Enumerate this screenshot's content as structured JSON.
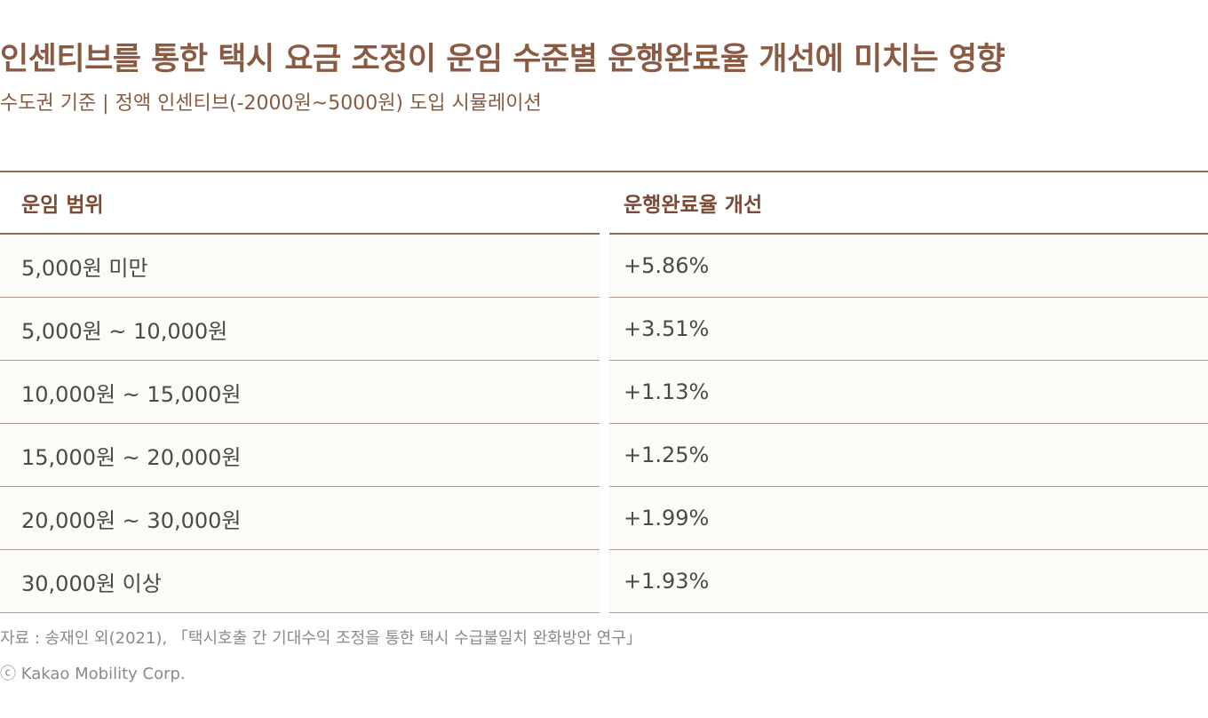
{
  "title": "인센티브를 통한 택시 요금 조정이 운임 수준별 운행완료율 개선에 미치는 영향",
  "subtitle": "수도권 기준  |  정액 인센티브(-2000원~5000원) 도입 시뮬레이션",
  "table": {
    "headers": [
      "운임 범위",
      "운행완료율 개선"
    ],
    "rows": [
      {
        "range": "5,000원 미만",
        "improvement": "+5.86%"
      },
      {
        "range": "5,000원 ~ 10,000원",
        "improvement": "+3.51%"
      },
      {
        "range": "10,000원 ~ 15,000원",
        "improvement": "+1.13%"
      },
      {
        "range": "15,000원 ~ 20,000원",
        "improvement": "+1.25%"
      },
      {
        "range": "20,000원 ~ 30,000원",
        "improvement": "+1.99%"
      },
      {
        "range": "30,000원 이상",
        "improvement": "+1.93%"
      }
    ]
  },
  "source": "자료 : 송재인 외(2021), 「택시호출 간 기대수익 조정을 통한 택시 수급불일치 완화방안 연구」",
  "copyright": "ⓒ Kakao Mobility Corp.",
  "colors": {
    "accent": "#8a5a43",
    "row_bg": "#fdfbf7",
    "rule": "#8a6a58"
  }
}
